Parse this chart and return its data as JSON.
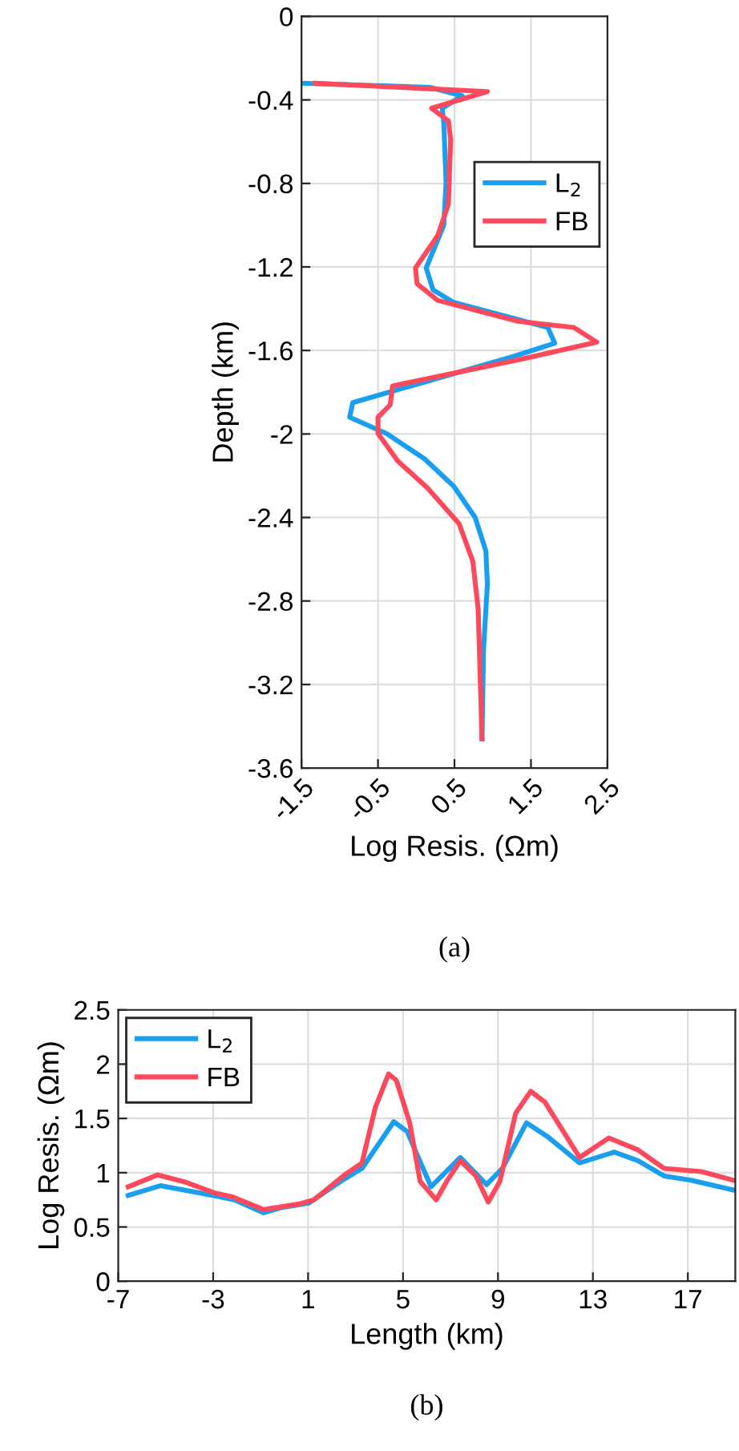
{
  "chart_data": [
    {
      "type": "line",
      "orientation": "horizontal",
      "xlabel": "Log Resis. (Ωm)",
      "ylabel": "Depth (km)",
      "xlim": [
        -1.5,
        2.5
      ],
      "xticks": [
        -1.5,
        -0.5,
        0.5,
        1.5,
        2.5
      ],
      "ylim": [
        -3.6,
        0
      ],
      "yticks": [
        0,
        -0.4,
        -0.8,
        -1.2,
        -1.6,
        -2,
        -2.4,
        -2.8,
        -3.2,
        -3.6
      ],
      "grid": true,
      "legend": "right",
      "annotations": [
        "(a)"
      ],
      "series": [
        {
          "name": "L$_{2}$",
          "color": "#1a9ff0",
          "x": [
            -0.32,
            -0.34,
            -0.38,
            -0.44,
            -0.51,
            -0.795,
            -1.0,
            -1.205,
            -1.31,
            -1.37,
            -1.49,
            -1.565,
            -1.63,
            -1.85,
            -1.92,
            -2.0,
            -2.12,
            -2.25,
            -2.4,
            -2.56,
            -2.72,
            -3.03,
            -3.46
          ],
          "values": [
            -1.5,
            0.18,
            0.6,
            0.34,
            0.36,
            0.39,
            0.36,
            0.13,
            0.22,
            0.49,
            1.72,
            1.81,
            1.26,
            -0.83,
            -0.87,
            -0.38,
            0.11,
            0.49,
            0.77,
            0.91,
            0.93,
            0.88,
            0.86
          ]
        },
        {
          "name": "FB",
          "color": "#fc4a5c",
          "x": [
            -0.32,
            -0.36,
            -0.44,
            -0.5,
            -0.59,
            -0.9,
            -1.05,
            -1.205,
            -1.28,
            -1.36,
            -1.46,
            -1.49,
            -1.56,
            -1.64,
            -1.77,
            -1.86,
            -1.92,
            -1.998,
            -2.13,
            -2.26,
            -2.43,
            -2.61,
            -2.84,
            -3.46
          ],
          "values": [
            -1.32,
            0.93,
            0.2,
            0.42,
            0.45,
            0.42,
            0.28,
            -0.01,
            0.01,
            0.28,
            1.33,
            2.06,
            2.36,
            1.4,
            -0.31,
            -0.34,
            -0.5,
            -0.5,
            -0.24,
            0.15,
            0.56,
            0.74,
            0.81,
            0.86
          ]
        }
      ]
    },
    {
      "type": "line",
      "xlabel": "Length (km)",
      "ylabel": "Log Resis. (Ωm)",
      "xlim": [
        -7,
        19
      ],
      "xticks": [
        -7,
        -3,
        1,
        5,
        9,
        13,
        17
      ],
      "ylim": [
        0,
        2.5
      ],
      "yticks": [
        0,
        0.5,
        1,
        1.5,
        2,
        2.5
      ],
      "grid": true,
      "legend": "top left",
      "annotations": [
        "(b)"
      ],
      "series": [
        {
          "name": "L$_{2}$",
          "color": "#1a9ff0",
          "x": [
            -6.58,
            -5.23,
            -3.0,
            -2.1,
            -0.87,
            -0.09,
            1.03,
            2.37,
            3.27,
            4.61,
            5.17,
            6.18,
            7.41,
            8.52,
            9.19,
            10.2,
            11.1,
            12.44,
            13.9,
            14.9,
            16.0,
            17.14,
            18.93
          ],
          "values": [
            0.79,
            0.88,
            0.79,
            0.75,
            0.63,
            0.68,
            0.72,
            0.92,
            1.04,
            1.47,
            1.38,
            0.87,
            1.14,
            0.89,
            1.04,
            1.46,
            1.33,
            1.09,
            1.19,
            1.11,
            0.97,
            0.93,
            0.84
          ]
        },
        {
          "name": "FB",
          "color": "#fc4a5c",
          "x": [
            -6.58,
            -5.35,
            -4.12,
            -2.89,
            -2.22,
            -0.87,
            0.58,
            1.25,
            2.6,
            3.27,
            3.83,
            4.39,
            4.72,
            5.28,
            5.72,
            6.4,
            6.84,
            7.41,
            8.07,
            8.59,
            9.08,
            9.75,
            10.38,
            10.98,
            12.44,
            13.67,
            14.9,
            16.0,
            17.58,
            18.93
          ],
          "values": [
            0.87,
            0.98,
            0.91,
            0.81,
            0.78,
            0.66,
            0.71,
            0.75,
            0.99,
            1.09,
            1.6,
            1.91,
            1.85,
            1.46,
            0.92,
            0.75,
            0.92,
            1.11,
            0.97,
            0.73,
            0.92,
            1.55,
            1.75,
            1.65,
            1.14,
            1.32,
            1.21,
            1.04,
            1.01,
            0.93
          ]
        }
      ]
    }
  ]
}
